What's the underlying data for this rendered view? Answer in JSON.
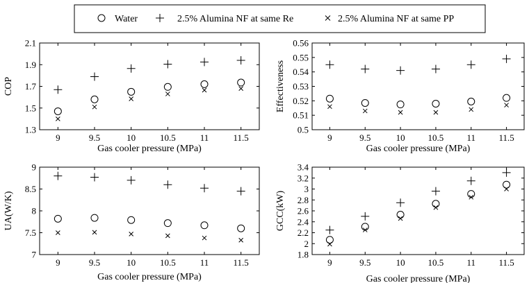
{
  "legend": {
    "entries": [
      {
        "label": "Water",
        "marker": "circle"
      },
      {
        "label": "2.5% Alumina NF at same Re",
        "marker": "plus"
      },
      {
        "label": "2.5% Alumina NF at same PP",
        "marker": "x"
      }
    ]
  },
  "chart_data": [
    {
      "type": "scatter",
      "xlabel": "Gas cooler pressure (MPa)",
      "ylabel": "COP",
      "x": [
        9,
        9.5,
        10,
        10.5,
        11,
        11.5
      ],
      "xlim": [
        8.75,
        11.75
      ],
      "ylim": [
        1.3,
        2.1
      ],
      "xticks": [
        "9",
        "9.5",
        "10",
        "10.5",
        "11",
        "11.5"
      ],
      "yticks": [
        "1.3",
        "1.5",
        "1.7",
        "1.9",
        "2.1"
      ],
      "yticks_values": [
        1.3,
        1.5,
        1.7,
        1.9,
        2.1
      ],
      "grid": false,
      "series": [
        {
          "name": "Water",
          "marker": "circle",
          "values": [
            1.47,
            1.58,
            1.65,
            1.695,
            1.72,
            1.735
          ]
        },
        {
          "name": "2.5% Alumina NF at same Re",
          "marker": "plus",
          "values": [
            1.67,
            1.79,
            1.865,
            1.905,
            1.925,
            1.94
          ]
        },
        {
          "name": "2.5% Alumina NF at same PP",
          "marker": "x",
          "values": [
            1.4,
            1.51,
            1.585,
            1.63,
            1.665,
            1.68
          ]
        }
      ]
    },
    {
      "type": "scatter",
      "xlabel": "Gas cooler pressure (MPa)",
      "ylabel": "Effectiveness",
      "x": [
        9,
        9.5,
        10,
        10.5,
        11,
        11.5
      ],
      "xlim": [
        8.75,
        11.75
      ],
      "ylim": [
        0.5,
        0.56
      ],
      "xticks": [
        "9",
        "9.5",
        "10",
        "10.5",
        "11",
        "11.5"
      ],
      "yticks": [
        "0.5",
        "0.51",
        "0.52",
        "0.53",
        "0.54",
        "0.55",
        "0.56"
      ],
      "yticks_values": [
        0.5,
        0.51,
        0.52,
        0.53,
        0.54,
        0.55,
        0.56
      ],
      "grid": false,
      "series": [
        {
          "name": "Water",
          "marker": "circle",
          "values": [
            0.5215,
            0.5185,
            0.5175,
            0.518,
            0.5195,
            0.522
          ]
        },
        {
          "name": "2.5% Alumina NF at same Re",
          "marker": "plus",
          "values": [
            0.545,
            0.542,
            0.541,
            0.542,
            0.545,
            0.549
          ]
        },
        {
          "name": "2.5% Alumina NF at same PP",
          "marker": "x",
          "values": [
            0.516,
            0.513,
            0.512,
            0.512,
            0.514,
            0.517
          ]
        }
      ]
    },
    {
      "type": "scatter",
      "xlabel": "Gas cooler pressure (MPa)",
      "ylabel": "UA(W/K)",
      "x": [
        9,
        9.5,
        10,
        10.5,
        11,
        11.5
      ],
      "xlim": [
        8.75,
        11.75
      ],
      "ylim": [
        7,
        9
      ],
      "xticks": [
        "9",
        "9.5",
        "10",
        "10.5",
        "11",
        "11.5"
      ],
      "yticks": [
        "7",
        "7.5",
        "8",
        "8.5",
        "9"
      ],
      "yticks_values": [
        7,
        7.5,
        8,
        8.5,
        9
      ],
      "grid": false,
      "series": [
        {
          "name": "Water",
          "marker": "circle",
          "values": [
            7.82,
            7.84,
            7.79,
            7.72,
            7.67,
            7.6
          ]
        },
        {
          "name": "2.5% Alumina NF at same Re",
          "marker": "plus",
          "values": [
            8.8,
            8.77,
            8.7,
            8.6,
            8.52,
            8.45
          ]
        },
        {
          "name": "2.5% Alumina NF at same PP",
          "marker": "x",
          "values": [
            7.5,
            7.51,
            7.47,
            7.43,
            7.38,
            7.33
          ]
        }
      ]
    },
    {
      "type": "scatter",
      "xlabel": "Gas cooler pressure (MPa)",
      "ylabel": "GCC(kW)",
      "x": [
        9,
        9.5,
        10,
        10.5,
        11,
        11.5
      ],
      "xlim": [
        8.75,
        11.75
      ],
      "ylim": [
        1.8,
        3.4
      ],
      "xticks": [
        "9",
        "9.5",
        "10",
        "10.5",
        "11",
        "11.5"
      ],
      "yticks": [
        "1.8",
        "2",
        "2.2",
        "2.4",
        "2.6",
        "2.8",
        "3",
        "3.2",
        "3.4"
      ],
      "yticks_values": [
        1.8,
        2,
        2.2,
        2.4,
        2.6,
        2.8,
        3,
        3.2,
        3.4
      ],
      "grid": false,
      "series": [
        {
          "name": "Water",
          "marker": "circle",
          "values": [
            2.07,
            2.31,
            2.53,
            2.73,
            2.91,
            3.08
          ]
        },
        {
          "name": "2.5% Alumina NF at same Re",
          "marker": "plus",
          "values": [
            2.25,
            2.5,
            2.75,
            2.96,
            3.15,
            3.3
          ]
        },
        {
          "name": "2.5% Alumina NF at same PP",
          "marker": "x",
          "values": [
            1.99,
            2.25,
            2.46,
            2.66,
            2.85,
            3.0
          ]
        }
      ]
    }
  ]
}
